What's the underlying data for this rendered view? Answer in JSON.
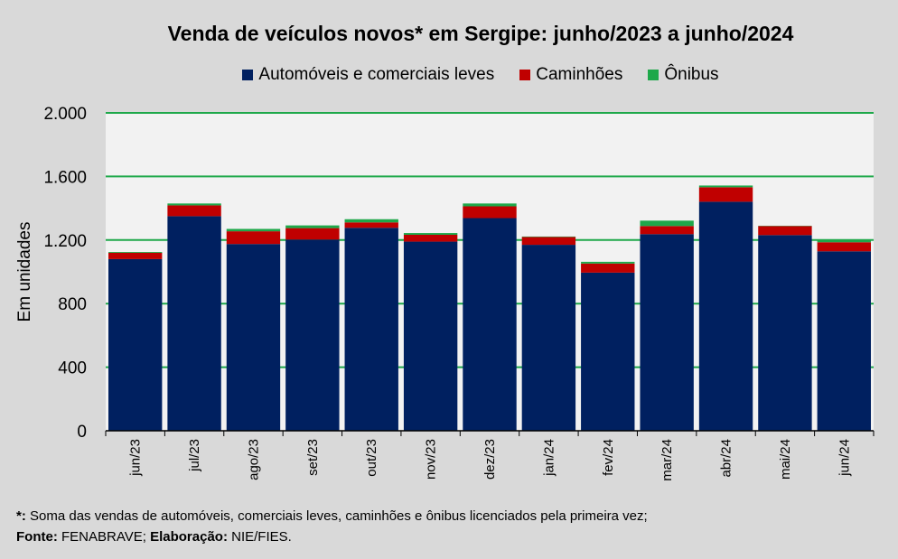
{
  "chart_data": {
    "type": "bar",
    "stacked": true,
    "title": "Venda de veículos novos* em Sergipe: junho/2023 a junho/2024",
    "ylabel": "Em unidades",
    "xlabel": "",
    "ylim": [
      0,
      2000
    ],
    "yticks": [
      0,
      400,
      800,
      1200,
      1600,
      2000
    ],
    "ytick_labels": [
      "0",
      "400",
      "800",
      "1.200",
      "1.600",
      "2.000"
    ],
    "grid": true,
    "legend_position": "top",
    "categories": [
      "jun/23",
      "jul/23",
      "ago/23",
      "set/23",
      "out/23",
      "nov/23",
      "dez/23",
      "jan/24",
      "fev/24",
      "mar/24",
      "abr/24",
      "mai/24",
      "jun/24"
    ],
    "series": [
      {
        "name": "Automóveis e comerciais leves",
        "color": "#002060",
        "values": [
          1080,
          1350,
          1175,
          1203,
          1277,
          1190,
          1338,
          1170,
          995,
          1237,
          1441,
          1231,
          1129
        ]
      },
      {
        "name": "Caminhões",
        "color": "#c00000",
        "values": [
          40,
          68,
          80,
          72,
          34,
          43,
          74,
          49,
          57,
          51,
          91,
          57,
          57
        ]
      },
      {
        "name": "Ônibus",
        "color": "#1ea84a",
        "values": [
          5,
          12,
          15,
          17,
          20,
          11,
          18,
          3,
          11,
          34,
          11,
          2,
          17
        ]
      }
    ]
  },
  "footnote": {
    "star_label": "*:",
    "star_text": " Soma das vendas de automóveis, comerciais leves, caminhões e ônibus licenciados pela primeira vez;",
    "source_label": "Fonte:",
    "source_text": " FENABRAVE; ",
    "elab_label": "Elaboração:",
    "elab_text": " NIE/FIES."
  }
}
